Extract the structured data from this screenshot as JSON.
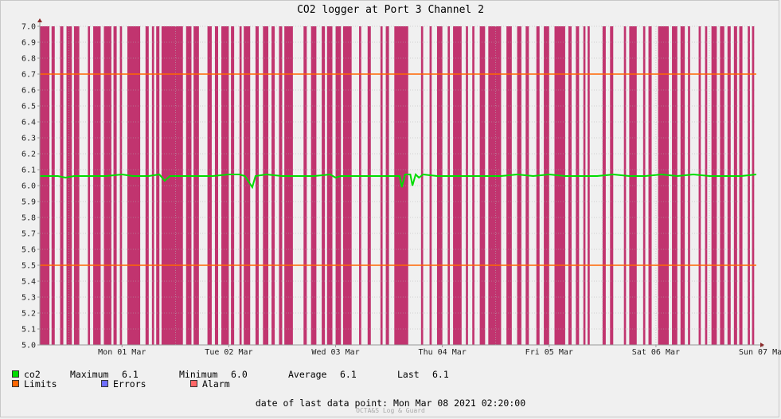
{
  "chart_data": {
    "type": "line",
    "title": "CO2 logger at Port 3 Channel 2",
    "ylim": [
      5.0,
      7.0
    ],
    "yticks": [
      "5.0",
      "5.1",
      "5.2",
      "5.3",
      "5.4",
      "5.5",
      "5.6",
      "5.7",
      "5.8",
      "5.9",
      "6.0",
      "6.1",
      "6.2",
      "6.3",
      "6.4",
      "6.5",
      "6.6",
      "6.7",
      "6.8",
      "6.9",
      "7.0"
    ],
    "xlabels": [
      "Mon 01 Mar",
      "Tue 02 Mar",
      "Wed 03 Mar",
      "Thu 04 Mar",
      "Fri 05 Mar",
      "Sat 06 Mar",
      "Sun 07 Mar"
    ],
    "x_range_days": [
      0.73,
      7.44
    ],
    "limits": [
      5.5,
      6.7
    ],
    "series": [
      {
        "name": "co2",
        "color": "#00dd00",
        "x_days": [
          0.73,
          0.9,
          0.97,
          1.05,
          1.2,
          1.35,
          1.5,
          1.6,
          1.75,
          1.85,
          1.9,
          1.95,
          2.05,
          2.2,
          2.35,
          2.5,
          2.6,
          2.65,
          2.72,
          2.75,
          2.85,
          3.0,
          3.15,
          3.3,
          3.45,
          3.5,
          3.55,
          3.7,
          3.85,
          4.0,
          4.1,
          4.12,
          4.15,
          4.2,
          4.22,
          4.25,
          4.28,
          4.32,
          4.45,
          4.6,
          4.75,
          4.9,
          5.05,
          5.2,
          5.35,
          5.5,
          5.65,
          5.8,
          5.95,
          6.1,
          6.25,
          6.4,
          6.55,
          6.7,
          6.85,
          7.0,
          7.15,
          7.3,
          7.44
        ],
        "values": [
          6.06,
          6.06,
          6.05,
          6.06,
          6.06,
          6.06,
          6.07,
          6.06,
          6.06,
          6.07,
          6.03,
          6.06,
          6.06,
          6.06,
          6.06,
          6.07,
          6.07,
          6.06,
          5.99,
          6.06,
          6.07,
          6.06,
          6.06,
          6.06,
          6.07,
          6.05,
          6.06,
          6.06,
          6.06,
          6.06,
          6.06,
          5.99,
          6.07,
          6.07,
          6.0,
          6.07,
          6.05,
          6.07,
          6.06,
          6.06,
          6.06,
          6.06,
          6.06,
          6.07,
          6.06,
          6.07,
          6.06,
          6.06,
          6.06,
          6.07,
          6.06,
          6.06,
          6.07,
          6.06,
          6.07,
          6.06,
          6.06,
          6.06,
          6.07
        ]
      },
      {
        "name": "Limits",
        "color": "#ff6600"
      },
      {
        "name": "Errors",
        "color": "#6e6eff"
      },
      {
        "name": "Alarm",
        "color": "#ff6666"
      }
    ],
    "alarm_bar_color": "#c1346f",
    "alarm_intervals_days": [
      [
        0.73,
        0.82
      ],
      [
        0.84,
        0.87
      ],
      [
        0.92,
        0.95
      ],
      [
        0.98,
        1.03
      ],
      [
        1.05,
        1.1
      ],
      [
        1.18,
        1.2
      ],
      [
        1.23,
        1.3
      ],
      [
        1.33,
        1.4
      ],
      [
        1.42,
        1.45
      ],
      [
        1.48,
        1.5
      ],
      [
        1.55,
        1.67
      ],
      [
        1.72,
        1.75
      ],
      [
        1.78,
        1.8
      ],
      [
        1.82,
        1.85
      ],
      [
        1.87,
        2.07
      ],
      [
        2.1,
        2.15
      ],
      [
        2.17,
        2.22
      ],
      [
        2.3,
        2.34
      ],
      [
        2.37,
        2.4
      ],
      [
        2.43,
        2.5
      ],
      [
        2.52,
        2.55
      ],
      [
        2.6,
        2.62
      ],
      [
        2.64,
        2.7
      ],
      [
        2.75,
        2.78
      ],
      [
        2.82,
        2.87
      ],
      [
        2.9,
        2.93
      ],
      [
        2.97,
        3.0
      ],
      [
        3.02,
        3.1
      ],
      [
        3.2,
        3.23
      ],
      [
        3.27,
        3.32
      ],
      [
        3.37,
        3.4
      ],
      [
        3.42,
        3.47
      ],
      [
        3.5,
        3.55
      ],
      [
        3.57,
        3.65
      ],
      [
        3.72,
        3.74
      ],
      [
        3.8,
        3.83
      ],
      [
        3.92,
        3.94
      ],
      [
        3.97,
        4.0
      ],
      [
        4.05,
        4.18
      ],
      [
        4.3,
        4.32
      ],
      [
        4.38,
        4.4
      ],
      [
        4.45,
        4.5
      ],
      [
        4.55,
        4.57
      ],
      [
        4.6,
        4.68
      ],
      [
        4.72,
        4.74
      ],
      [
        4.78,
        4.8
      ],
      [
        4.85,
        4.9
      ],
      [
        4.93,
        5.05
      ],
      [
        5.1,
        5.15
      ],
      [
        5.2,
        5.24
      ],
      [
        5.28,
        5.31
      ],
      [
        5.38,
        5.41
      ],
      [
        5.45,
        5.5
      ],
      [
        5.55,
        5.65
      ],
      [
        5.68,
        5.71
      ],
      [
        5.75,
        5.78
      ],
      [
        5.82,
        5.84
      ],
      [
        5.86,
        5.88
      ],
      [
        6.0,
        6.03
      ],
      [
        6.07,
        6.1
      ],
      [
        6.2,
        6.22
      ],
      [
        6.25,
        6.32
      ],
      [
        6.38,
        6.4
      ],
      [
        6.43,
        6.46
      ],
      [
        6.52,
        6.62
      ],
      [
        6.65,
        6.7
      ],
      [
        6.73,
        6.77
      ],
      [
        6.8,
        6.82
      ],
      [
        6.9,
        6.92
      ],
      [
        6.96,
        6.98
      ],
      [
        7.02,
        7.07
      ],
      [
        7.1,
        7.14
      ],
      [
        7.17,
        7.2
      ],
      [
        7.23,
        7.26
      ],
      [
        7.28,
        7.31
      ],
      [
        7.36,
        7.38
      ],
      [
        7.4,
        7.42
      ]
    ]
  },
  "legend": {
    "co2_label": "co2",
    "max_label": "Maximum",
    "max_value": "6.1",
    "min_label": "Minimum",
    "min_value": "6.0",
    "avg_label": "Average",
    "avg_value": "6.1",
    "last_label": "Last",
    "last_value": "6.1",
    "limits_label": "Limits",
    "errors_label": "Errors",
    "alarm_label": "Alarm"
  },
  "footer": {
    "last_point": "date of last data point:  Mon Mar 08 2021 02:20:00",
    "brand": "OCTA&S Log & Guard"
  }
}
